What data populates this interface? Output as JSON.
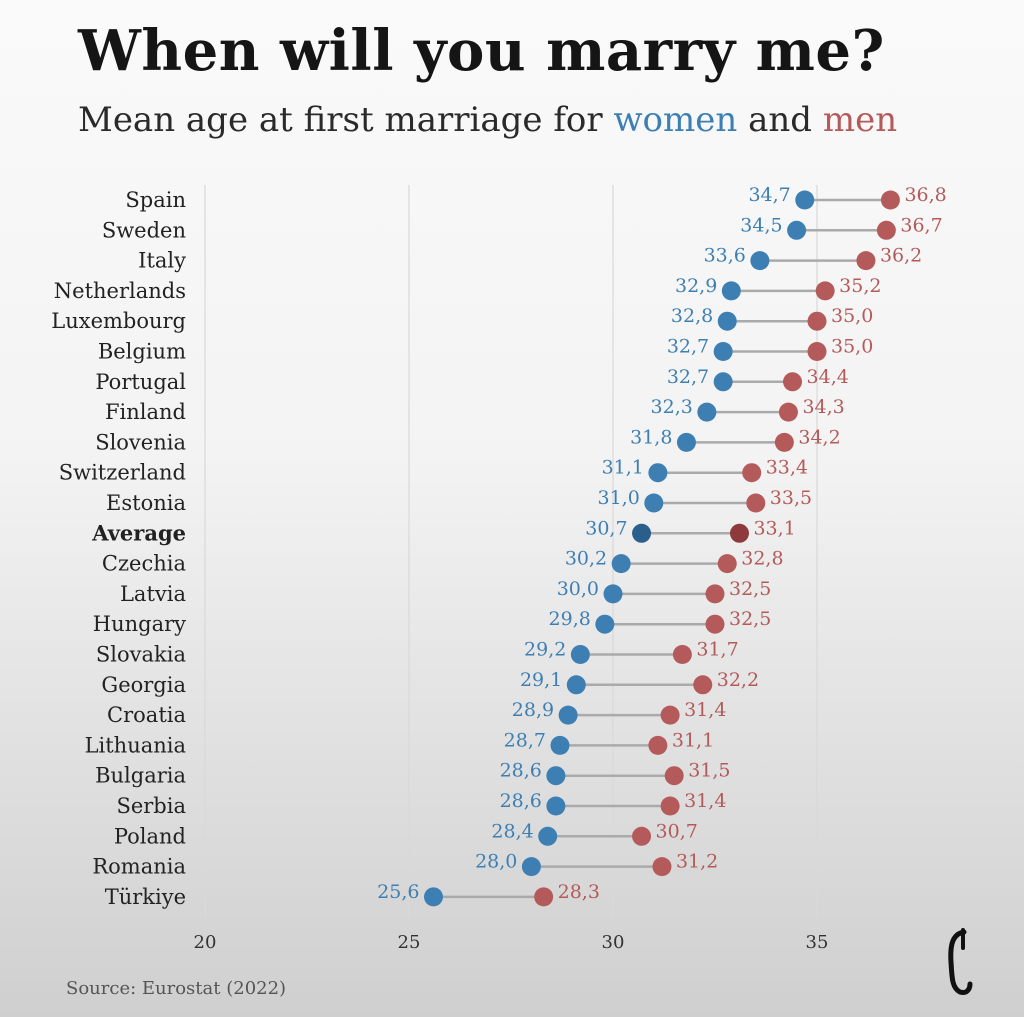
{
  "title": "When will you marry me?",
  "subtitle": {
    "prefix": "Mean age at first marriage for ",
    "women": "women",
    "and": " and ",
    "men": "men"
  },
  "source": "Source: Eurostat (2022)",
  "colors": {
    "women": "#3e7fb3",
    "men": "#b45a5a",
    "women_average": "#2a5f8c",
    "men_average": "#8f3a3a",
    "connector": "#aaaaaa",
    "gridline": "#d9d9d9",
    "label_text": "#222222"
  },
  "chart_data": {
    "type": "dumbbell",
    "title": "When will you marry me?",
    "subtitle": "Mean age at first marriage for women and men",
    "xlim": [
      20,
      38
    ],
    "xticks": [
      20,
      25,
      30,
      35
    ],
    "grid": true,
    "series": [
      {
        "name": "women",
        "key": "women"
      },
      {
        "name": "men",
        "key": "men"
      }
    ],
    "categories": [
      "Spain",
      "Sweden",
      "Italy",
      "Netherlands",
      "Luxembourg",
      "Belgium",
      "Portugal",
      "Finland",
      "Slovenia",
      "Switzerland",
      "Estonia",
      "Average",
      "Czechia",
      "Latvia",
      "Hungary",
      "Slovakia",
      "Georgia",
      "Croatia",
      "Lithuania",
      "Bulgaria",
      "Serbia",
      "Poland",
      "Romania",
      "Türkiye"
    ],
    "women": [
      34.7,
      34.5,
      33.6,
      32.9,
      32.8,
      32.7,
      32.7,
      32.3,
      31.8,
      31.1,
      31.0,
      30.7,
      30.2,
      30.0,
      29.8,
      29.2,
      29.1,
      28.9,
      28.7,
      28.6,
      28.6,
      28.4,
      28.0,
      25.6
    ],
    "men": [
      36.8,
      36.7,
      36.2,
      35.2,
      35.0,
      35.0,
      34.4,
      34.3,
      34.2,
      33.4,
      33.5,
      33.1,
      32.8,
      32.5,
      32.5,
      31.7,
      32.2,
      31.4,
      31.1,
      31.5,
      31.4,
      30.7,
      31.2,
      28.3
    ],
    "women_labels": [
      "34,7",
      "34,5",
      "33,6",
      "32,9",
      "32,8",
      "32,7",
      "32,7",
      "32,3",
      "31,8",
      "31,1",
      "31,0",
      "30,7",
      "30,2",
      "30,0",
      "29,8",
      "29,2",
      "29,1",
      "28,9",
      "28,7",
      "28,6",
      "28,6",
      "28,4",
      "28,0",
      "25,6"
    ],
    "men_labels": [
      "36,8",
      "36,7",
      "36,2",
      "35,2",
      "35,0",
      "35,0",
      "34,4",
      "34,3",
      "34,2",
      "33,4",
      "33,5",
      "33,1",
      "32,8",
      "32,5",
      "32,5",
      "31,7",
      "32,2",
      "31,4",
      "31,1",
      "31,5",
      "31,4",
      "30,7",
      "31,2",
      "28,3"
    ],
    "highlight_category": "Average"
  }
}
